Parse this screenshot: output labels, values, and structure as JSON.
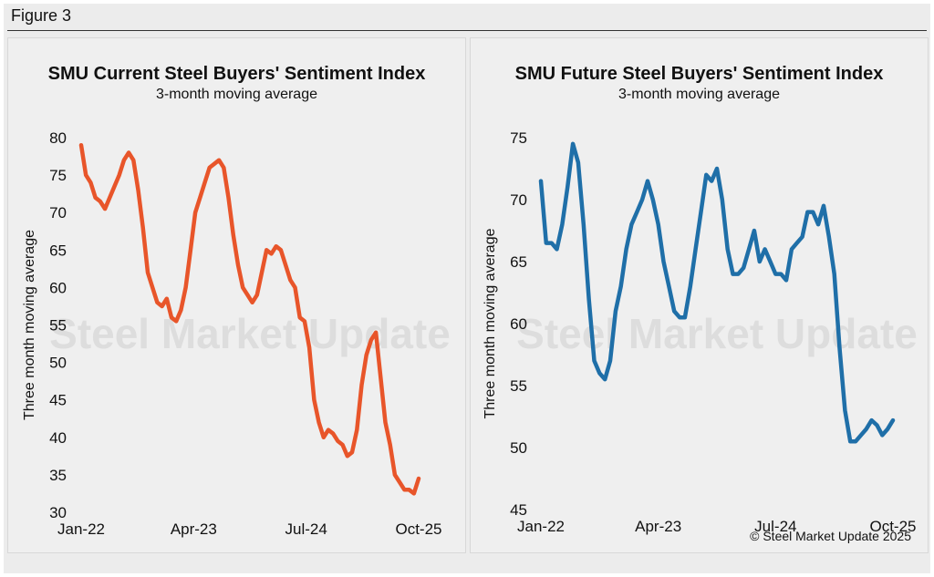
{
  "figure_label": "Figure 3",
  "copyright": "© Steel Market Update 2025",
  "watermark": "Steel Market Update",
  "colors": {
    "current": "#e8552a",
    "future": "#1f6fa8"
  },
  "chart_data": [
    {
      "type": "line",
      "title": "SMU Current Steel Buyers' Sentiment Index",
      "subtitle": "3-month moving average",
      "xlabel": "",
      "ylabel": "Three month moving average",
      "ylim": [
        30,
        80
      ],
      "yticks": [
        "80",
        "75",
        "70",
        "65",
        "60",
        "55",
        "50",
        "45",
        "40",
        "35",
        "30"
      ],
      "xticks": [
        "Jan-22",
        "Apr-23",
        "Jul-24",
        "Oct-25"
      ],
      "grid": false,
      "series": [
        {
          "name": "SMU Current Steel Buyers' Sentiment Index",
          "x_start": "Jan-22",
          "step": "biweekly",
          "values": [
            79,
            75,
            74,
            72,
            71.5,
            70.5,
            72,
            73.5,
            75,
            77,
            78,
            77,
            73,
            68,
            62,
            60,
            58,
            57.5,
            58.5,
            56,
            55.5,
            57,
            60,
            65,
            70,
            72,
            74,
            76,
            76.5,
            77,
            76,
            72,
            67,
            63,
            60,
            59,
            58,
            59,
            62,
            65,
            64.5,
            65.5,
            65,
            63,
            61,
            60,
            56,
            55.5,
            52,
            45,
            42,
            40,
            41,
            40.5,
            39.5,
            39,
            37.5,
            38,
            41,
            47,
            51,
            53,
            54,
            48,
            42,
            39,
            35,
            34,
            33,
            33,
            32.5,
            34.5
          ]
        }
      ]
    },
    {
      "type": "line",
      "title": "SMU Future Steel Buyers' Sentiment Index",
      "subtitle": "3-month moving average",
      "xlabel": "",
      "ylabel": "Three month moving average",
      "ylim": [
        45,
        75
      ],
      "yticks": [
        "75",
        "70",
        "65",
        "60",
        "55",
        "50",
        "45"
      ],
      "xticks": [
        "Jan-22",
        "Apr-23",
        "Jul-24",
        "Oct-25"
      ],
      "grid": false,
      "series": [
        {
          "name": "SMU Future Steel Buyers' Sentiment Index",
          "x_start": "Jan-22",
          "step": "biweekly",
          "values": [
            71.5,
            66.5,
            66.5,
            66,
            68,
            71,
            74.5,
            73,
            68,
            62,
            57,
            56,
            55.5,
            57,
            61,
            63,
            66,
            68,
            69,
            70,
            71.5,
            70,
            68,
            65,
            63,
            61,
            60.5,
            60.5,
            63,
            66,
            69,
            72,
            71.5,
            72.5,
            70,
            66,
            64,
            64,
            64.5,
            66,
            67.5,
            65,
            66,
            65,
            64,
            64,
            63.5,
            66,
            66.5,
            67,
            69,
            69,
            68,
            69.5,
            67,
            64,
            58,
            53,
            50.5,
            50.5,
            51,
            51.5,
            52.2,
            51.8,
            51,
            51.5,
            52.2
          ]
        }
      ]
    }
  ]
}
